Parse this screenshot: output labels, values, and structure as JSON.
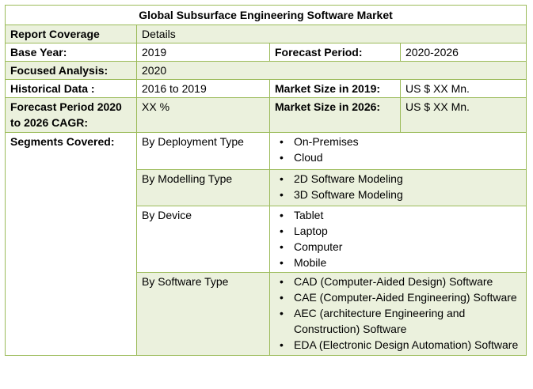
{
  "title": "Global Subsurface Engineering Software Market",
  "rows": {
    "report_coverage": {
      "label": "Report Coverage",
      "value": "Details"
    },
    "base_year": {
      "label": "Base Year:",
      "value": "2019",
      "label2": "Forecast Period:",
      "value2": "2020-2026"
    },
    "focused_analysis": {
      "label": "Focused Analysis:",
      "value": "2020"
    },
    "historical_data": {
      "label": "Historical Data :",
      "value": "2016 to 2019",
      "label2": "Market Size in 2019:",
      "value2": "US $ XX Mn."
    },
    "forecast_cagr": {
      "label": "Forecast Period 2020 to 2026 CAGR:",
      "value": "XX %",
      "label2": "Market Size in 2026:",
      "value2": "US $ XX Mn."
    }
  },
  "segments": {
    "label": "Segments Covered:",
    "groups": [
      {
        "name": "By Deployment Type",
        "items": [
          "On-Premises",
          "Cloud"
        ]
      },
      {
        "name": "By Modelling Type",
        "items": [
          "2D Software Modeling",
          "3D Software Modeling"
        ]
      },
      {
        "name": "By Device",
        "items": [
          "Tablet",
          "Laptop",
          "Computer",
          "Mobile"
        ]
      },
      {
        "name": "By Software Type",
        "items": [
          "CAD (Computer-Aided Design) Software",
          "CAE (Computer-Aided Engineering) Software",
          "AEC (architecture Engineering and Construction) Software",
          "EDA (Electronic Design Automation) Software"
        ]
      }
    ]
  }
}
